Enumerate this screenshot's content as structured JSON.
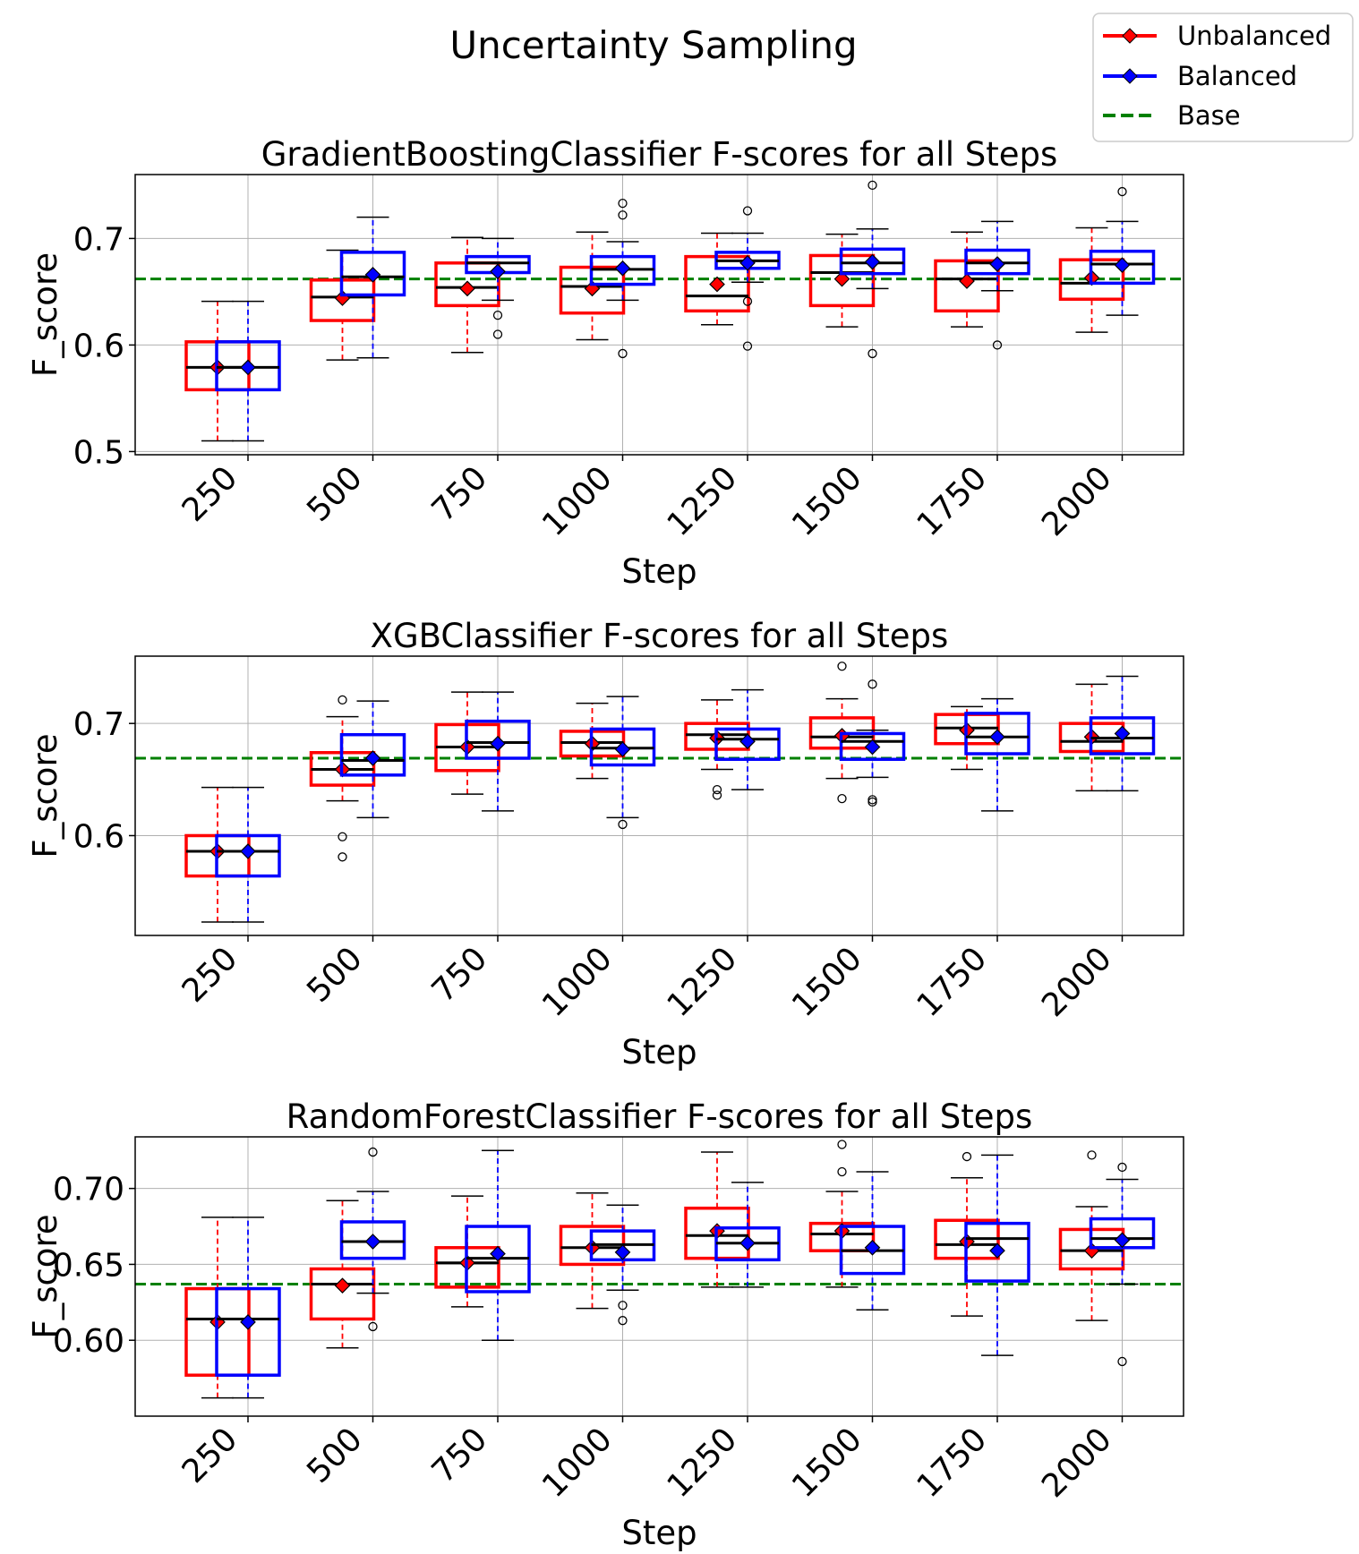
{
  "figure": {
    "suptitle": "Uncertainty Sampling",
    "legend": {
      "position": "top-right",
      "entries": [
        {
          "label": "Unbalanced",
          "color": "#ff0000",
          "style": "solid-diamond"
        },
        {
          "label": "Balanced",
          "color": "#0000ff",
          "style": "solid-diamond"
        },
        {
          "label": "Base",
          "color": "#008000",
          "style": "dashed"
        }
      ]
    }
  },
  "colors": {
    "unbalanced": "#ff0000",
    "balanced": "#0000ff",
    "base": "#008000",
    "median": "#000000"
  },
  "chart_data": [
    {
      "type": "box",
      "title": "GradientBoostingClassifier F-scores for all Steps",
      "xlabel": "Step",
      "ylabel": "F_score",
      "categories": [
        "250",
        "500",
        "750",
        "1000",
        "1250",
        "1500",
        "1750",
        "2000"
      ],
      "ylim": [
        0.497,
        0.76
      ],
      "yticks": [
        0.5,
        0.6,
        0.7
      ],
      "ytick_labels": [
        "0.5",
        "0.6",
        "0.7"
      ],
      "grid": true,
      "base": 0.662,
      "series": [
        {
          "name": "Unbalanced",
          "boxes": [
            {
              "whislo": 0.51,
              "q1": 0.558,
              "med": 0.579,
              "q3": 0.603,
              "whishi": 0.641,
              "mean": 0.579,
              "fliers": []
            },
            {
              "whislo": 0.586,
              "q1": 0.623,
              "med": 0.645,
              "q3": 0.661,
              "whishi": 0.689,
              "mean": 0.644,
              "fliers": []
            },
            {
              "whislo": 0.593,
              "q1": 0.637,
              "med": 0.654,
              "q3": 0.677,
              "whishi": 0.701,
              "mean": 0.653,
              "fliers": []
            },
            {
              "whislo": 0.605,
              "q1": 0.63,
              "med": 0.655,
              "q3": 0.673,
              "whishi": 0.706,
              "mean": 0.653,
              "fliers": []
            },
            {
              "whislo": 0.619,
              "q1": 0.632,
              "med": 0.646,
              "q3": 0.683,
              "whishi": 0.705,
              "mean": 0.657,
              "fliers": []
            },
            {
              "whislo": 0.617,
              "q1": 0.637,
              "med": 0.668,
              "q3": 0.684,
              "whishi": 0.704,
              "mean": 0.662,
              "fliers": []
            },
            {
              "whislo": 0.617,
              "q1": 0.632,
              "med": 0.662,
              "q3": 0.679,
              "whishi": 0.706,
              "mean": 0.66,
              "fliers": []
            },
            {
              "whislo": 0.612,
              "q1": 0.643,
              "med": 0.658,
              "q3": 0.68,
              "whishi": 0.71,
              "mean": 0.663,
              "fliers": []
            }
          ]
        },
        {
          "name": "Balanced",
          "boxes": [
            {
              "whislo": 0.51,
              "q1": 0.558,
              "med": 0.579,
              "q3": 0.603,
              "whishi": 0.641,
              "mean": 0.579,
              "fliers": []
            },
            {
              "whislo": 0.588,
              "q1": 0.647,
              "med": 0.664,
              "q3": 0.687,
              "whishi": 0.72,
              "mean": 0.666,
              "fliers": []
            },
            {
              "whislo": 0.642,
              "q1": 0.668,
              "med": 0.677,
              "q3": 0.683,
              "whishi": 0.7,
              "mean": 0.669,
              "fliers": [
                0.628,
                0.61
              ]
            },
            {
              "whislo": 0.642,
              "q1": 0.657,
              "med": 0.671,
              "q3": 0.683,
              "whishi": 0.697,
              "mean": 0.672,
              "fliers": [
                0.733,
                0.722,
                0.592
              ]
            },
            {
              "whislo": 0.659,
              "q1": 0.672,
              "med": 0.679,
              "q3": 0.687,
              "whishi": 0.705,
              "mean": 0.677,
              "fliers": [
                0.726,
                0.641,
                0.599
              ]
            },
            {
              "whislo": 0.653,
              "q1": 0.667,
              "med": 0.677,
              "q3": 0.69,
              "whishi": 0.709,
              "mean": 0.678,
              "fliers": [
                0.75,
                0.592
              ]
            },
            {
              "whislo": 0.651,
              "q1": 0.667,
              "med": 0.677,
              "q3": 0.689,
              "whishi": 0.716,
              "mean": 0.676,
              "fliers": [
                0.6
              ]
            },
            {
              "whislo": 0.628,
              "q1": 0.658,
              "med": 0.676,
              "q3": 0.688,
              "whishi": 0.716,
              "mean": 0.675,
              "fliers": [
                0.744
              ]
            }
          ]
        }
      ]
    },
    {
      "type": "box",
      "title": "XGBClassifier F-scores for all Steps",
      "xlabel": "Step",
      "ylabel": "F_score",
      "categories": [
        "250",
        "500",
        "750",
        "1000",
        "1250",
        "1500",
        "1750",
        "2000"
      ],
      "ylim": [
        0.511,
        0.76
      ],
      "yticks": [
        0.6,
        0.7
      ],
      "ytick_labels": [
        "0.6",
        "0.7"
      ],
      "grid": true,
      "base": 0.669,
      "series": [
        {
          "name": "Unbalanced",
          "boxes": [
            {
              "whislo": 0.523,
              "q1": 0.564,
              "med": 0.586,
              "q3": 0.6,
              "whishi": 0.643,
              "mean": 0.586,
              "fliers": []
            },
            {
              "whislo": 0.631,
              "q1": 0.645,
              "med": 0.659,
              "q3": 0.674,
              "whishi": 0.706,
              "mean": 0.659,
              "fliers": [
                0.721,
                0.599,
                0.581
              ]
            },
            {
              "whislo": 0.637,
              "q1": 0.658,
              "med": 0.679,
              "q3": 0.699,
              "whishi": 0.728,
              "mean": 0.679,
              "fliers": []
            },
            {
              "whislo": 0.651,
              "q1": 0.671,
              "med": 0.683,
              "q3": 0.693,
              "whishi": 0.718,
              "mean": 0.682,
              "fliers": []
            },
            {
              "whislo": 0.659,
              "q1": 0.677,
              "med": 0.69,
              "q3": 0.7,
              "whishi": 0.721,
              "mean": 0.687,
              "fliers": [
                0.641,
                0.636
              ]
            },
            {
              "whislo": 0.651,
              "q1": 0.678,
              "med": 0.688,
              "q3": 0.705,
              "whishi": 0.722,
              "mean": 0.689,
              "fliers": [
                0.751,
                0.633
              ]
            },
            {
              "whislo": 0.659,
              "q1": 0.682,
              "med": 0.696,
              "q3": 0.708,
              "whishi": 0.715,
              "mean": 0.694,
              "fliers": []
            },
            {
              "whislo": 0.64,
              "q1": 0.675,
              "med": 0.684,
              "q3": 0.7,
              "whishi": 0.735,
              "mean": 0.688,
              "fliers": []
            }
          ]
        },
        {
          "name": "Balanced",
          "boxes": [
            {
              "whislo": 0.523,
              "q1": 0.564,
              "med": 0.586,
              "q3": 0.6,
              "whishi": 0.643,
              "mean": 0.586,
              "fliers": []
            },
            {
              "whislo": 0.616,
              "q1": 0.654,
              "med": 0.667,
              "q3": 0.69,
              "whishi": 0.72,
              "mean": 0.669,
              "fliers": []
            },
            {
              "whislo": 0.622,
              "q1": 0.669,
              "med": 0.683,
              "q3": 0.702,
              "whishi": 0.728,
              "mean": 0.682,
              "fliers": []
            },
            {
              "whislo": 0.616,
              "q1": 0.663,
              "med": 0.678,
              "q3": 0.695,
              "whishi": 0.724,
              "mean": 0.677,
              "fliers": [
                0.61
              ]
            },
            {
              "whislo": 0.641,
              "q1": 0.668,
              "med": 0.686,
              "q3": 0.695,
              "whishi": 0.73,
              "mean": 0.684,
              "fliers": []
            },
            {
              "whislo": 0.652,
              "q1": 0.668,
              "med": 0.684,
              "q3": 0.691,
              "whishi": 0.694,
              "mean": 0.679,
              "fliers": [
                0.735,
                0.632,
                0.63
              ]
            },
            {
              "whislo": 0.622,
              "q1": 0.673,
              "med": 0.688,
              "q3": 0.709,
              "whishi": 0.722,
              "mean": 0.688,
              "fliers": []
            },
            {
              "whislo": 0.64,
              "q1": 0.673,
              "med": 0.687,
              "q3": 0.705,
              "whishi": 0.742,
              "mean": 0.691,
              "fliers": []
            }
          ]
        }
      ]
    },
    {
      "type": "box",
      "title": "RandomForestClassifier F-scores for all Steps",
      "xlabel": "Step",
      "ylabel": "F_score",
      "categories": [
        "250",
        "500",
        "750",
        "1000",
        "1250",
        "1500",
        "1750",
        "2000"
      ],
      "ylim": [
        0.55,
        0.734
      ],
      "yticks": [
        0.6,
        0.65,
        0.7
      ],
      "ytick_labels": [
        "0.60",
        "0.65",
        "0.70"
      ],
      "grid": true,
      "base": 0.637,
      "series": [
        {
          "name": "Unbalanced",
          "boxes": [
            {
              "whislo": 0.562,
              "q1": 0.577,
              "med": 0.614,
              "q3": 0.634,
              "whishi": 0.681,
              "mean": 0.612,
              "fliers": []
            },
            {
              "whislo": 0.595,
              "q1": 0.614,
              "med": 0.637,
              "q3": 0.647,
              "whishi": 0.692,
              "mean": 0.636,
              "fliers": []
            },
            {
              "whislo": 0.622,
              "q1": 0.635,
              "med": 0.651,
              "q3": 0.661,
              "whishi": 0.695,
              "mean": 0.651,
              "fliers": []
            },
            {
              "whislo": 0.621,
              "q1": 0.65,
              "med": 0.661,
              "q3": 0.675,
              "whishi": 0.697,
              "mean": 0.661,
              "fliers": []
            },
            {
              "whislo": 0.635,
              "q1": 0.654,
              "med": 0.669,
              "q3": 0.687,
              "whishi": 0.724,
              "mean": 0.672,
              "fliers": []
            },
            {
              "whislo": 0.635,
              "q1": 0.659,
              "med": 0.67,
              "q3": 0.677,
              "whishi": 0.698,
              "mean": 0.672,
              "fliers": [
                0.729,
                0.711
              ]
            },
            {
              "whislo": 0.616,
              "q1": 0.654,
              "med": 0.663,
              "q3": 0.679,
              "whishi": 0.707,
              "mean": 0.665,
              "fliers": [
                0.721
              ]
            },
            {
              "whislo": 0.613,
              "q1": 0.647,
              "med": 0.659,
              "q3": 0.673,
              "whishi": 0.688,
              "mean": 0.659,
              "fliers": [
                0.722
              ]
            }
          ]
        },
        {
          "name": "Balanced",
          "boxes": [
            {
              "whislo": 0.562,
              "q1": 0.577,
              "med": 0.614,
              "q3": 0.634,
              "whishi": 0.681,
              "mean": 0.612,
              "fliers": []
            },
            {
              "whislo": 0.631,
              "q1": 0.654,
              "med": 0.665,
              "q3": 0.678,
              "whishi": 0.698,
              "mean": 0.665,
              "fliers": [
                0.724,
                0.609
              ]
            },
            {
              "whislo": 0.6,
              "q1": 0.632,
              "med": 0.654,
              "q3": 0.675,
              "whishi": 0.725,
              "mean": 0.657,
              "fliers": []
            },
            {
              "whislo": 0.633,
              "q1": 0.653,
              "med": 0.663,
              "q3": 0.672,
              "whishi": 0.689,
              "mean": 0.658,
              "fliers": [
                0.623,
                0.613
              ]
            },
            {
              "whislo": 0.635,
              "q1": 0.653,
              "med": 0.664,
              "q3": 0.674,
              "whishi": 0.704,
              "mean": 0.664,
              "fliers": []
            },
            {
              "whislo": 0.62,
              "q1": 0.644,
              "med": 0.659,
              "q3": 0.675,
              "whishi": 0.711,
              "mean": 0.661,
              "fliers": []
            },
            {
              "whislo": 0.59,
              "q1": 0.639,
              "med": 0.667,
              "q3": 0.677,
              "whishi": 0.722,
              "mean": 0.659,
              "fliers": []
            },
            {
              "whislo": 0.637,
              "q1": 0.661,
              "med": 0.667,
              "q3": 0.68,
              "whishi": 0.706,
              "mean": 0.666,
              "fliers": [
                0.714,
                0.586
              ]
            }
          ]
        }
      ]
    }
  ]
}
